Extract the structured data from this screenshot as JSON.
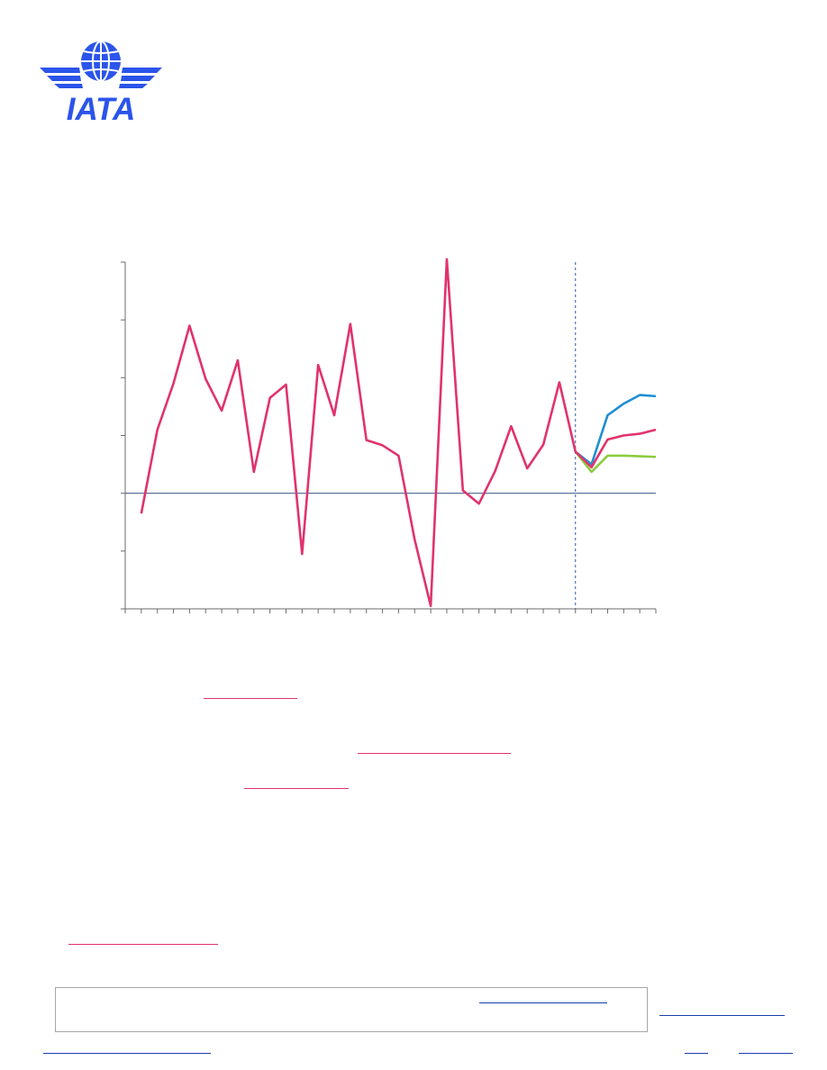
{
  "brand": {
    "name": "IATA",
    "logo_color": "#2b54ea"
  },
  "colors": {
    "actual": "#e0336b",
    "upside": "#1f8fd6",
    "downside": "#8ccc3f",
    "zero_line": "#3a5a8c",
    "divider": "#2e5ba8",
    "link_underline": "#e0336b",
    "footer_link": "#1c3faa"
  },
  "chart_data": {
    "type": "line",
    "title": "",
    "xlabel": "",
    "ylabel": "",
    "x": [
      0,
      1,
      2,
      3,
      4,
      5,
      6,
      7,
      8,
      9,
      10,
      11,
      12,
      13,
      14,
      15,
      16,
      17,
      18,
      19,
      20,
      21,
      22,
      23,
      24,
      25,
      26,
      27,
      28,
      29,
      30,
      31,
      32,
      33
    ],
    "ylim": [
      -2,
      4
    ],
    "tick_count_y": 7,
    "forecast_divider_x": 28,
    "zero_line": true,
    "series": [
      {
        "key": "baseline",
        "x": [
          1,
          2,
          3,
          4,
          5,
          6,
          7,
          8,
          9,
          10,
          11,
          12,
          13,
          14,
          15,
          16,
          17,
          18,
          19,
          20,
          21,
          22,
          23,
          24,
          25,
          26,
          27,
          28,
          29,
          30,
          31,
          32,
          33
        ],
        "values": [
          -0.35,
          1.1,
          1.9,
          2.9,
          1.98,
          1.43,
          2.3,
          0.37,
          1.65,
          1.88,
          -1.05,
          2.22,
          1.35,
          2.93,
          0.92,
          0.83,
          0.65,
          -0.8,
          -1.95,
          4.05,
          0.05,
          -0.18,
          0.38,
          1.16,
          0.43,
          0.84,
          1.92,
          0.72,
          0.45,
          0.93,
          1.0,
          1.03,
          1.1
        ]
      },
      {
        "key": "upside",
        "x": [
          28,
          29,
          30,
          31,
          32,
          33
        ],
        "values": [
          0.72,
          0.5,
          1.35,
          1.55,
          1.7,
          1.68
        ]
      },
      {
        "key": "downside",
        "x": [
          28,
          29,
          30,
          31,
          32,
          33
        ],
        "values": [
          0.72,
          0.37,
          0.65,
          0.65,
          0.64,
          0.63
        ]
      }
    ]
  }
}
